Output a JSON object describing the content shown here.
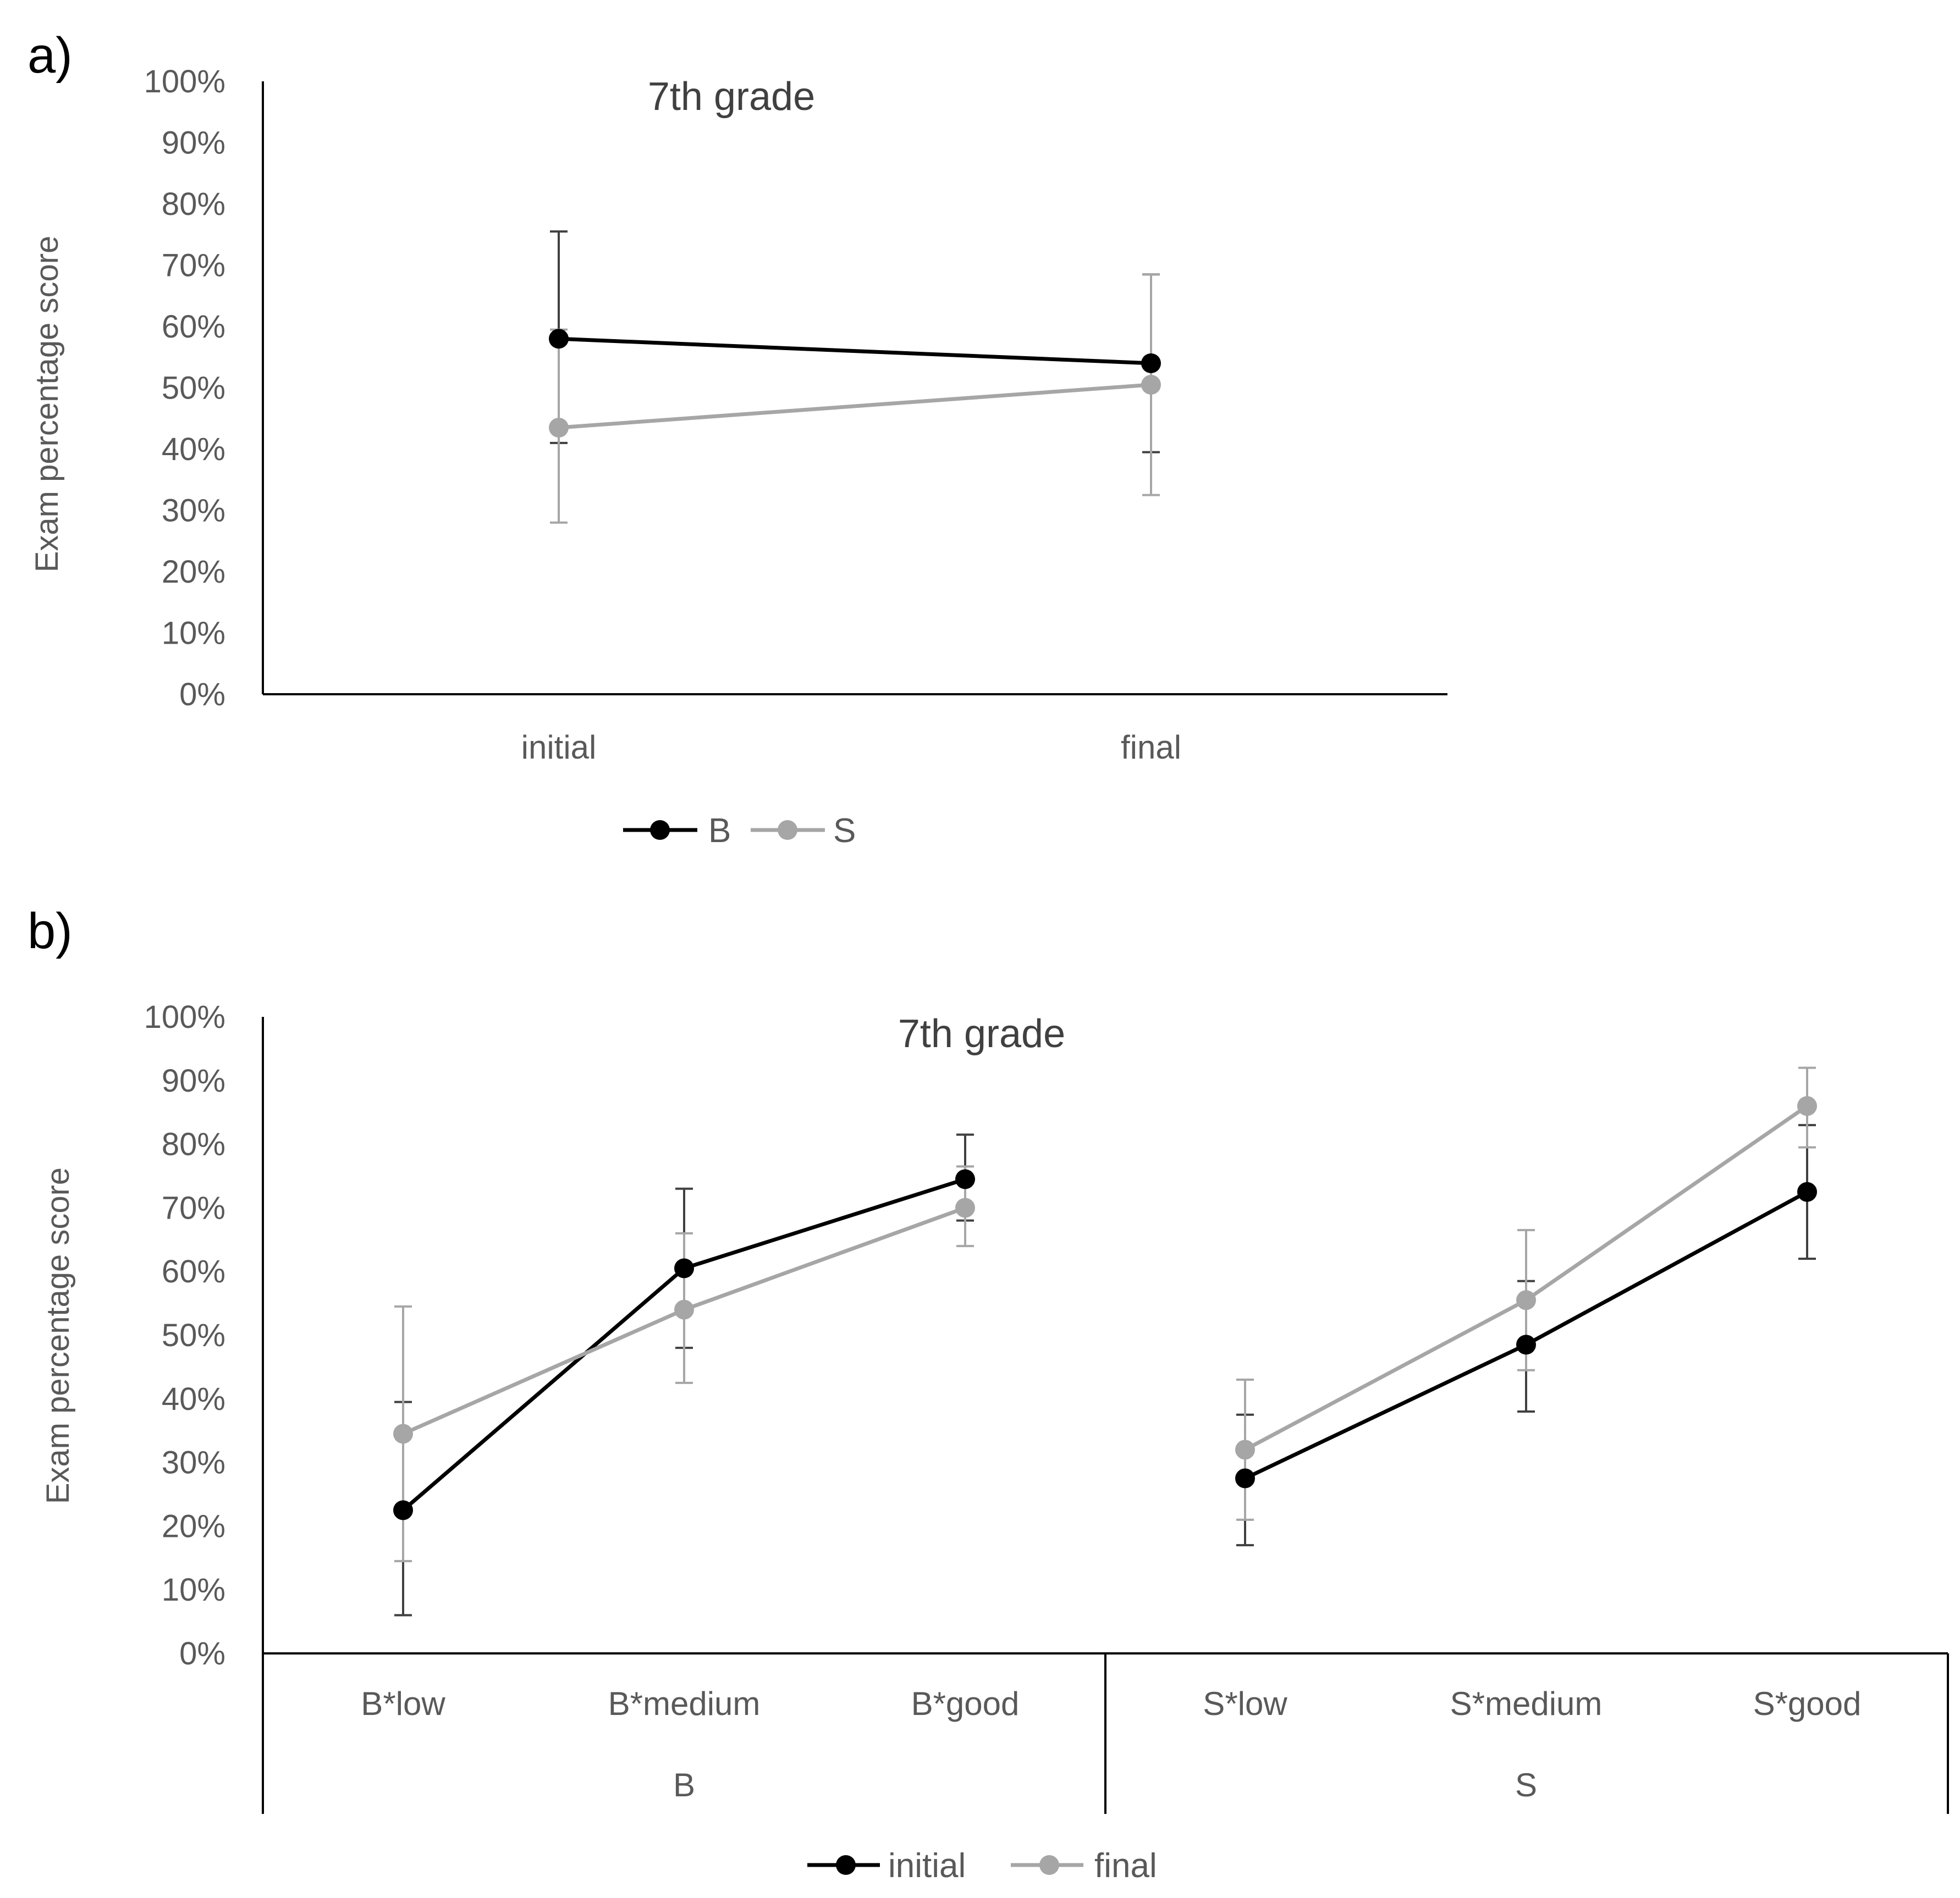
{
  "chart_data": [
    {
      "panel_label": "a)",
      "type": "line",
      "title": "7th grade",
      "xlabel": "",
      "ylabel": "Exam percentage score",
      "ylim": [
        0,
        100
      ],
      "ytick_labels": [
        "0%",
        "10%",
        "20%",
        "30%",
        "40%",
        "50%",
        "60%",
        "70%",
        "80%",
        "90%",
        "100%"
      ],
      "categories": [
        "initial",
        "final"
      ],
      "grid": false,
      "legend_position": "bottom",
      "series": [
        {
          "name": "B",
          "color": "#000000",
          "values": [
            58,
            54
          ],
          "error_low": [
            41,
            39.5
          ],
          "error_high": [
            75.5,
            68.5
          ]
        },
        {
          "name": "S",
          "color": "#a6a6a6",
          "values": [
            43.5,
            50.5
          ],
          "error_low": [
            28,
            32.5
          ],
          "error_high": [
            59.5,
            68.5
          ]
        }
      ]
    },
    {
      "panel_label": "b)",
      "type": "line",
      "title": "7th grade",
      "xlabel": "",
      "ylabel": "Exam percentage score",
      "ylim": [
        0,
        100
      ],
      "ytick_labels": [
        "0%",
        "10%",
        "20%",
        "30%",
        "40%",
        "50%",
        "60%",
        "70%",
        "80%",
        "90%",
        "100%"
      ],
      "categories": [
        "B*low",
        "B*medium",
        "B*good",
        "S*low",
        "S*medium",
        "S*good"
      ],
      "groups": [
        {
          "label": "B",
          "size": 3
        },
        {
          "label": "S",
          "size": 3
        }
      ],
      "grid": false,
      "legend_position": "bottom",
      "series": [
        {
          "name": "initial",
          "color": "#000000",
          "segments": [
            [
              0,
              3
            ],
            [
              3,
              6
            ]
          ],
          "values": [
            22.5,
            60.5,
            74.5,
            27.5,
            48.5,
            72.5
          ],
          "error_low": [
            6,
            48,
            68,
            17,
            38,
            62
          ],
          "error_high": [
            39.5,
            73,
            81.5,
            37.5,
            58.5,
            83
          ]
        },
        {
          "name": "final",
          "color": "#a6a6a6",
          "segments": [
            [
              0,
              3
            ],
            [
              3,
              6
            ]
          ],
          "values": [
            34.5,
            54,
            70,
            32,
            55.5,
            86
          ],
          "error_low": [
            14.5,
            42.5,
            64,
            21,
            44.5,
            79.5
          ],
          "error_high": [
            54.5,
            66,
            76.5,
            43,
            66.5,
            92
          ]
        }
      ]
    }
  ]
}
